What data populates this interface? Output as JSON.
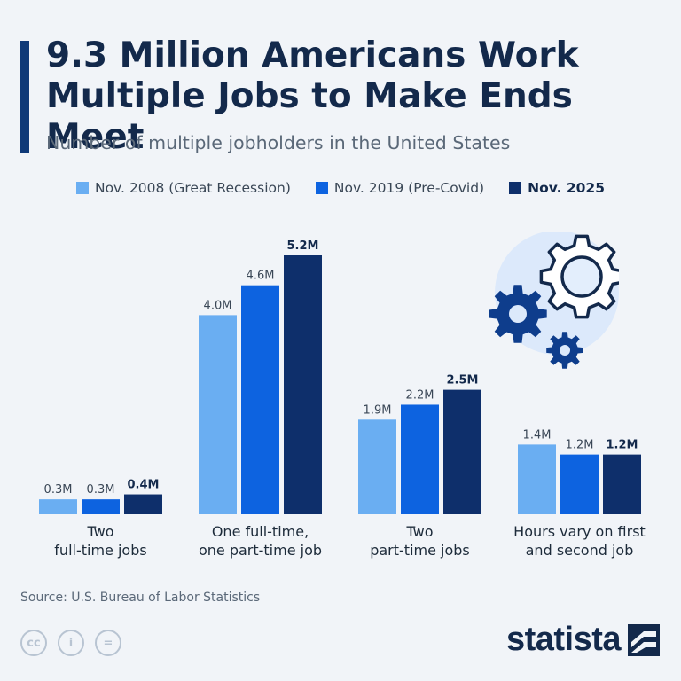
{
  "header": {
    "title": "9.3 Million Americans Work Multiple Jobs to Make Ends Meet",
    "subtitle": "Number of multiple jobholders in the United States"
  },
  "legend": [
    {
      "label": "Nov. 2008 (Great Recession)",
      "color": "#6aaef2"
    },
    {
      "label": "Nov. 2019 (Pre-Covid)",
      "color": "#0d63e0"
    },
    {
      "label": "Nov. 2025",
      "color": "#0e2f6b"
    }
  ],
  "chart_data": {
    "type": "bar",
    "categories": [
      "Two full-time jobs",
      "One full-time, one part-time job",
      "Two part-time jobs",
      "Hours vary on first and second job"
    ],
    "category_lines": [
      [
        "Two",
        "full-time jobs"
      ],
      [
        "One full-time,",
        "one part-time job"
      ],
      [
        "Two",
        "part-time jobs"
      ],
      [
        "Hours vary on first",
        "and second job"
      ]
    ],
    "series": [
      {
        "name": "Nov. 2008 (Great Recession)",
        "values": [
          0.3,
          4.0,
          1.9,
          1.4
        ],
        "labels": [
          "0.3M",
          "4.0M",
          "1.9M",
          "1.4M"
        ],
        "color": "#6aaef2"
      },
      {
        "name": "Nov. 2019 (Pre-Covid)",
        "values": [
          0.3,
          4.6,
          2.2,
          1.2
        ],
        "labels": [
          "0.3M",
          "4.6M",
          "2.2M",
          "1.2M"
        ],
        "color": "#0d63e0"
      },
      {
        "name": "Nov. 2025",
        "values": [
          0.4,
          5.2,
          2.5,
          1.2
        ],
        "labels": [
          "0.4M",
          "5.2M",
          "2.5M",
          "1.2M"
        ],
        "color": "#0e2f6b"
      }
    ],
    "unit": "M",
    "ylim": [
      0,
      5.2
    ],
    "grid": false
  },
  "footer": {
    "source": "Source: U.S. Bureau of Labor Statistics",
    "cc_icons": [
      {
        "name": "cc-icon",
        "glyph": "cc"
      },
      {
        "name": "by-icon",
        "glyph": "i"
      },
      {
        "name": "nd-icon",
        "glyph": "="
      }
    ],
    "brand": "statista"
  }
}
